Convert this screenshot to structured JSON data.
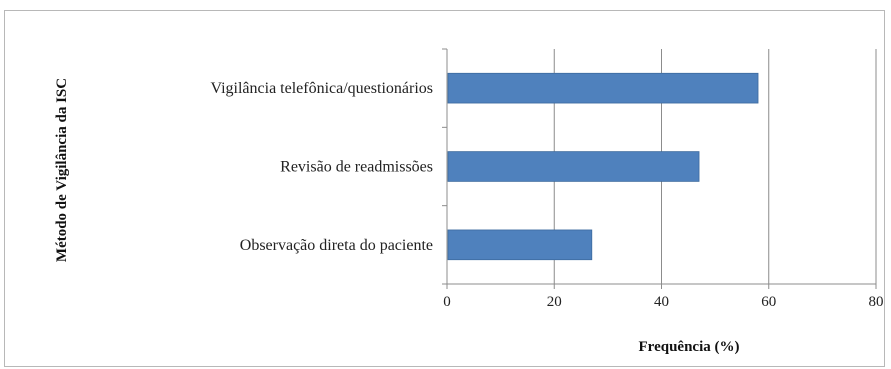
{
  "chart_data": {
    "type": "bar",
    "orientation": "horizontal",
    "categories": [
      "Vigilância telefônica/questionários",
      "Revisão de readmissões",
      "Observação direta do paciente"
    ],
    "values": [
      58,
      47,
      27
    ],
    "xlabel": "Frequência  (%)",
    "ylabel": "Método  de  Vigilância da ISC",
    "xlim": [
      0,
      80
    ],
    "xticks": [
      0,
      20,
      40,
      60,
      80
    ],
    "grid": true,
    "bar_color": "#4f81bd"
  }
}
